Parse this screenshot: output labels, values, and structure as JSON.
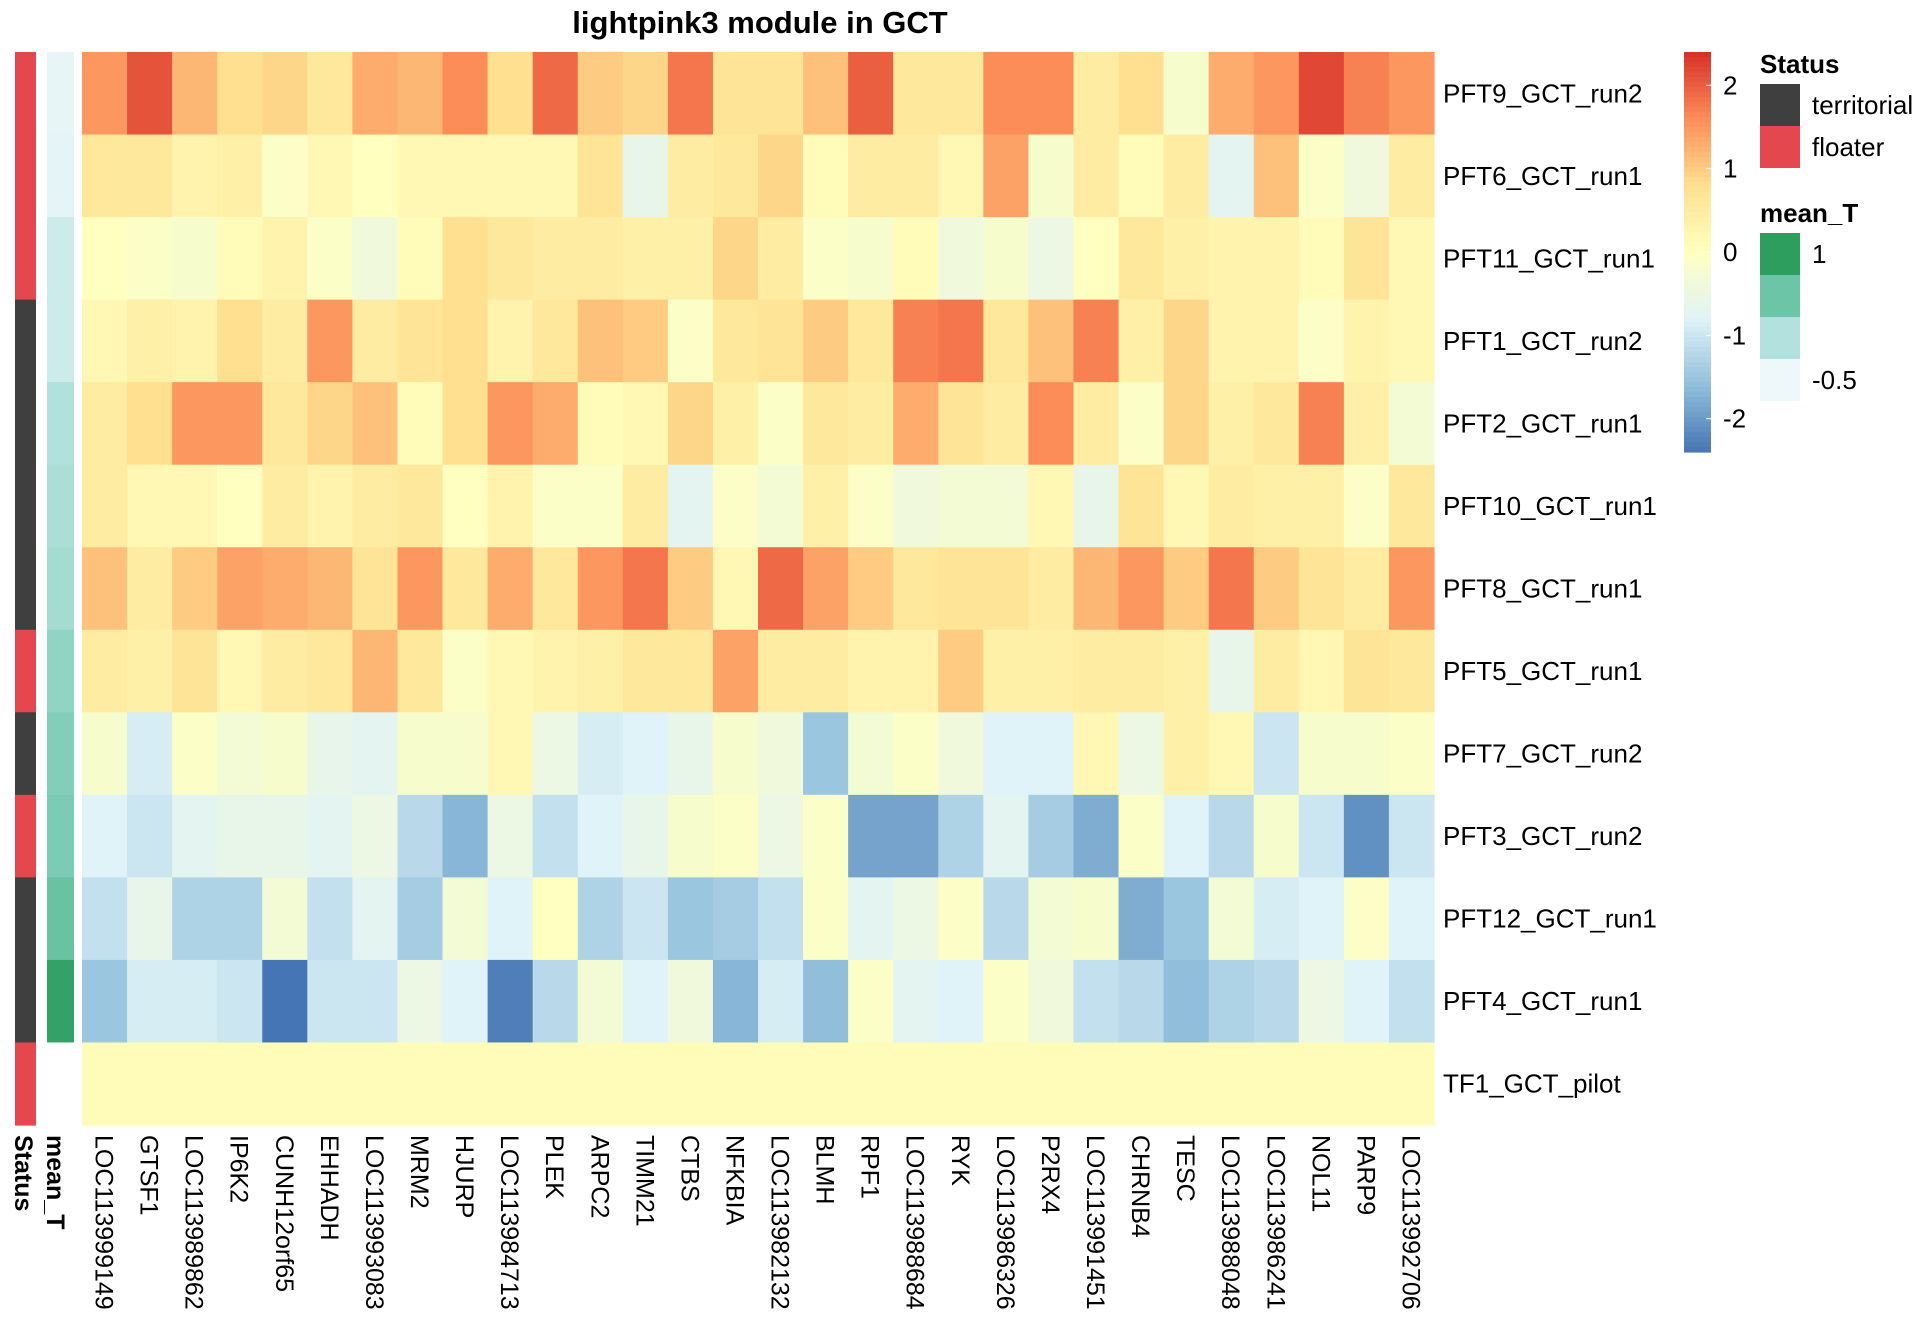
{
  "chart_data": {
    "type": "heatmap",
    "title": "lightpink3 module in GCT",
    "rows": [
      "PFT9_GCT_run2",
      "PFT6_GCT_run1",
      "PFT11_GCT_run1",
      "PFT1_GCT_run2",
      "PFT2_GCT_run1",
      "PFT10_GCT_run1",
      "PFT8_GCT_run1",
      "PFT5_GCT_run1",
      "PFT7_GCT_run2",
      "PFT3_GCT_run2",
      "PFT12_GCT_run1",
      "PFT4_GCT_run1",
      "TF1_GCT_pilot"
    ],
    "columns": [
      "LOC113999149",
      "GTSF1",
      "LOC113989862",
      "IP6K2",
      "CUNH12orf65",
      "EHHADH",
      "LOC113993083",
      "MRM2",
      "HJURP",
      "LOC113984713",
      "PLEK",
      "ARPC2",
      "TIMM21",
      "CTBS",
      "NFKBIA",
      "LOC113982132",
      "BLMH",
      "RPF1",
      "LOC113988684",
      "RYK",
      "LOC113986326",
      "P2RX4",
      "LOC113991451",
      "CHRNB4",
      "TESC",
      "LOC113988048",
      "LOC113986241",
      "NOL11",
      "PARP9",
      "LOC113992706"
    ],
    "values": [
      [
        1.5,
        2.1,
        1.2,
        0.8,
        0.9,
        0.6,
        1.3,
        1.2,
        1.6,
        0.8,
        1.9,
        1.0,
        0.9,
        1.8,
        0.7,
        0.7,
        1.1,
        2.0,
        0.6,
        0.6,
        1.6,
        1.6,
        0.5,
        0.8,
        -0.2,
        1.3,
        1.5,
        2.2,
        1.7,
        1.5
      ],
      [
        0.6,
        0.6,
        0.3,
        0.4,
        -0.1,
        0.2,
        0.0,
        0.2,
        0.2,
        0.2,
        0.2,
        0.7,
        -0.6,
        0.5,
        0.6,
        0.9,
        0.1,
        0.5,
        0.5,
        0.2,
        1.4,
        -0.2,
        0.5,
        0.1,
        0.5,
        -0.7,
        1.1,
        -0.1,
        -0.4,
        0.5
      ],
      [
        0.0,
        -0.1,
        -0.2,
        0.1,
        0.3,
        -0.1,
        -0.4,
        0.1,
        0.8,
        0.6,
        0.5,
        0.5,
        0.4,
        0.4,
        0.9,
        0.5,
        -0.1,
        -0.2,
        0.1,
        -0.4,
        -0.2,
        -0.5,
        0.0,
        0.6,
        0.4,
        0.3,
        0.3,
        0.1,
        0.7,
        0.2
      ],
      [
        0.2,
        0.4,
        0.3,
        0.8,
        0.5,
        1.5,
        0.5,
        0.7,
        0.8,
        0.3,
        0.6,
        1.1,
        1.0,
        -0.1,
        0.6,
        0.7,
        1.0,
        0.6,
        1.7,
        1.8,
        0.6,
        1.1,
        1.7,
        0.4,
        0.9,
        0.3,
        0.3,
        -0.1,
        0.3,
        0.2
      ],
      [
        0.5,
        0.8,
        1.5,
        1.5,
        0.6,
        0.9,
        1.1,
        0.1,
        0.8,
        1.5,
        1.3,
        0.1,
        0.2,
        0.9,
        0.4,
        -0.1,
        0.6,
        0.5,
        1.3,
        0.7,
        0.5,
        1.6,
        0.5,
        -0.1,
        0.9,
        0.4,
        0.6,
        1.7,
        0.4,
        -0.3
      ],
      [
        0.5,
        0.2,
        0.2,
        0.0,
        0.5,
        0.3,
        0.5,
        0.6,
        0.0,
        0.3,
        -0.1,
        -0.1,
        0.5,
        -0.7,
        -0.1,
        -0.3,
        0.4,
        -0.1,
        -0.4,
        -0.3,
        -0.3,
        0.2,
        -0.6,
        0.7,
        0.2,
        0.5,
        0.4,
        0.4,
        -0.1,
        0.6
      ],
      [
        1.1,
        0.5,
        1.0,
        1.4,
        1.3,
        1.2,
        0.7,
        1.5,
        0.6,
        1.3,
        0.6,
        1.5,
        1.8,
        1.0,
        0.2,
        1.9,
        1.4,
        1.0,
        0.6,
        0.7,
        0.7,
        0.5,
        1.2,
        1.5,
        1.0,
        1.8,
        1.0,
        0.7,
        0.5,
        1.5
      ],
      [
        0.5,
        0.4,
        0.7,
        0.2,
        0.5,
        0.6,
        1.2,
        0.6,
        -0.1,
        0.2,
        0.3,
        0.4,
        0.6,
        0.6,
        1.4,
        0.5,
        0.5,
        0.3,
        0.3,
        1.0,
        0.4,
        0.4,
        0.5,
        0.5,
        0.4,
        -0.6,
        0.5,
        0.2,
        0.7,
        0.6
      ],
      [
        -0.2,
        -0.9,
        -0.1,
        -0.3,
        -0.2,
        -0.6,
        -0.7,
        -0.2,
        -0.2,
        0.2,
        -0.5,
        -0.9,
        -0.8,
        -0.6,
        -0.2,
        -0.4,
        -1.5,
        -0.3,
        -0.1,
        -0.4,
        -0.8,
        -0.8,
        0.2,
        -0.5,
        0.4,
        0.2,
        -1.0,
        -0.2,
        -0.2,
        -0.1
      ],
      [
        -0.8,
        -1.0,
        -0.7,
        -0.6,
        -0.6,
        -0.7,
        -0.5,
        -1.2,
        -1.7,
        -0.5,
        -1.1,
        -0.8,
        -0.6,
        -0.2,
        -0.1,
        -0.5,
        -0.1,
        -1.9,
        -1.9,
        -1.3,
        -0.7,
        -1.4,
        -1.8,
        -0.1,
        -0.8,
        -1.2,
        -0.2,
        -1.0,
        -2.1,
        -1.0
      ],
      [
        -1.1,
        -0.6,
        -1.3,
        -1.3,
        -0.3,
        -1.1,
        -0.7,
        -1.4,
        -0.3,
        -0.8,
        0.0,
        -1.3,
        -1.0,
        -1.5,
        -1.4,
        -1.1,
        -0.1,
        -0.7,
        -0.5,
        -0.1,
        -1.2,
        -0.3,
        -0.2,
        -1.8,
        -1.5,
        -0.3,
        -0.9,
        -0.8,
        -0.1,
        -0.8
      ],
      [
        -1.5,
        -0.9,
        -0.9,
        -1.0,
        -2.4,
        -1.0,
        -1.0,
        -0.5,
        -0.8,
        -2.3,
        -1.2,
        -0.3,
        -0.8,
        -0.4,
        -1.7,
        -0.9,
        -1.6,
        -0.1,
        -0.7,
        -0.8,
        -0.1,
        -0.4,
        -1.1,
        -1.2,
        -1.6,
        -1.3,
        -1.2,
        -0.5,
        -0.8,
        -1.1
      ],
      [
        0.1,
        0.1,
        0.1,
        0.1,
        0.1,
        0.1,
        0.1,
        0.1,
        0.1,
        0.1,
        0.1,
        0.1,
        0.1,
        0.1,
        0.1,
        0.1,
        0.1,
        0.1,
        0.1,
        0.1,
        0.1,
        0.1,
        0.1,
        0.1,
        0.1,
        0.1,
        0.1,
        0.1,
        0.1,
        0.1
      ]
    ],
    "annotations": {
      "status_label": "Status",
      "mean_t_label": "mean_T",
      "status": [
        "floater",
        "floater",
        "floater",
        "territorial",
        "territorial",
        "territorial",
        "territorial",
        "floater",
        "territorial",
        "floater",
        "territorial",
        "territorial",
        "floater"
      ],
      "mean_t": [
        -0.45,
        -0.42,
        -0.2,
        -0.2,
        0.05,
        0.1,
        0.15,
        0.3,
        0.4,
        0.45,
        0.6,
        1.05,
        null
      ]
    },
    "color_scale": {
      "min": -2.4,
      "max": 2.4,
      "ticks": [
        2,
        1,
        0,
        -1,
        -2
      ],
      "tick_labels": [
        "2",
        "1",
        "0",
        "-1",
        "-2"
      ],
      "stops": [
        "#4575B4",
        "#91BFDB",
        "#E0F3F8",
        "#FFFFBF",
        "#FEE090",
        "#FC8D59",
        "#D73027"
      ]
    },
    "legend": {
      "status_title": "Status",
      "status_items": [
        {
          "label": "territorial",
          "color": "#3F3F3F"
        },
        {
          "label": "floater",
          "color": "#E5474E"
        }
      ],
      "mean_t_title": "mean_T",
      "mean_t_items": [
        {
          "label": "1",
          "color": "#2E9E5F"
        },
        {
          "label": "",
          "color": "#6DC5A8"
        },
        {
          "label": "",
          "color": "#B3E2DE"
        },
        {
          "label": "-0.5",
          "color": "#EEF7FA"
        }
      ]
    }
  }
}
